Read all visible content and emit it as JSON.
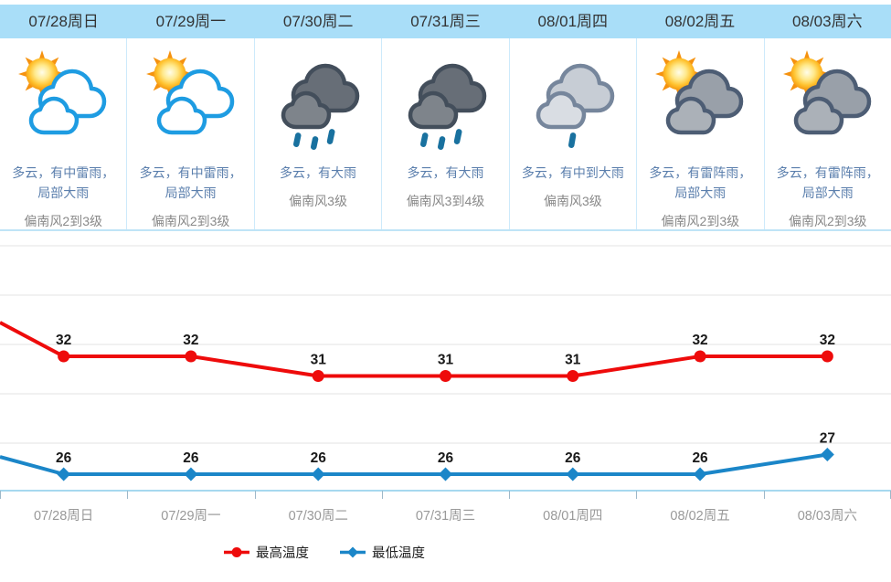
{
  "forecast": {
    "days": [
      {
        "date": "07/28周日",
        "icon": "sun-white-clouds",
        "desc_lines": [
          "多云，有中雷雨，",
          "局部大雨"
        ],
        "wind": "偏南风2到3级"
      },
      {
        "date": "07/29周一",
        "icon": "sun-white-clouds",
        "desc_lines": [
          "多云，有中雷雨，",
          "局部大雨"
        ],
        "wind": "偏南风2到3级"
      },
      {
        "date": "07/30周二",
        "icon": "dark-clouds-rain",
        "desc_lines": [
          "多云，有大雨"
        ],
        "wind": "偏南风3级"
      },
      {
        "date": "07/31周三",
        "icon": "dark-clouds-rain",
        "desc_lines": [
          "多云，有大雨"
        ],
        "wind": "偏南风3到4级"
      },
      {
        "date": "08/01周四",
        "icon": "gray-cloud-rain",
        "desc_lines": [
          "多云，有中到大雨"
        ],
        "wind": "偏南风3级"
      },
      {
        "date": "08/02周五",
        "icon": "sun-gray-clouds",
        "desc_lines": [
          "多云，有雷阵雨，",
          "局部大雨"
        ],
        "wind": "偏南风2到3级"
      },
      {
        "date": "08/03周六",
        "icon": "sun-gray-clouds",
        "desc_lines": [
          "多云，有雷阵雨，",
          "局部大雨"
        ],
        "wind": "偏南风2到3级"
      }
    ]
  },
  "chart_data": {
    "type": "line",
    "categories": [
      "07/28周日",
      "07/29周一",
      "07/30周二",
      "07/31周三",
      "08/01周四",
      "08/02周五",
      "08/03周六"
    ],
    "series": [
      {
        "name": "最高温度",
        "color": "#ee0b0b",
        "marker": "circle",
        "values": [
          32,
          32,
          31,
          31,
          31,
          32,
          32
        ]
      },
      {
        "name": "最低温度",
        "color": "#1b86c8",
        "marker": "diamond",
        "values": [
          26,
          26,
          26,
          26,
          26,
          26,
          27
        ]
      }
    ],
    "legend_position": "bottom",
    "grid": true,
    "value_labels": true
  },
  "colors": {
    "header_bg": "#a9def8",
    "divider": "#cdeafb",
    "desc_text": "#5b7fad",
    "wind_text": "#898989",
    "grid_line": "#e3e3e3",
    "axis_line": "#a6d8ef",
    "tick": "#9db8c9",
    "axis_label": "#999999",
    "value_label": "#1a1a1a"
  }
}
